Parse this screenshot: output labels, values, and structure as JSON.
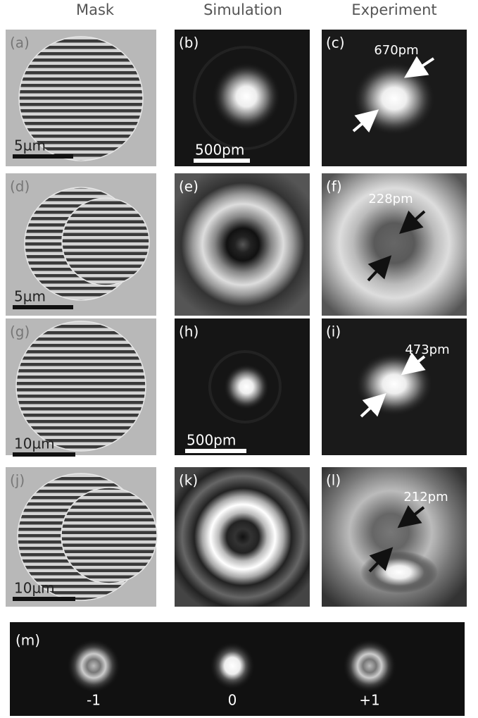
{
  "column_headers": [
    "Mask",
    "Simulation",
    "Experiment"
  ],
  "panels": [
    {
      "label": "(a)",
      "scale_bar": "5µm"
    },
    {
      "label": "(b)",
      "scale_bar": "500pm"
    },
    {
      "label": "(c)",
      "annotation": "670pm"
    },
    {
      "label": "(d)",
      "scale_bar": "5µm"
    },
    {
      "label": "(e)"
    },
    {
      "label": "(f)",
      "annotation": "228pm"
    },
    {
      "label": "(g)",
      "scale_bar": "10µm"
    },
    {
      "label": "(h)",
      "scale_bar": "500pm"
    },
    {
      "label": "(i)",
      "annotation": "473pm"
    },
    {
      "label": "(j)",
      "scale_bar": "10µm"
    },
    {
      "label": "(k)"
    },
    {
      "label": "(l)",
      "annotation": "212pm"
    }
  ],
  "diffraction_panel": {
    "label": "(m)",
    "orders": [
      "-1",
      "0",
      "+1"
    ]
  }
}
